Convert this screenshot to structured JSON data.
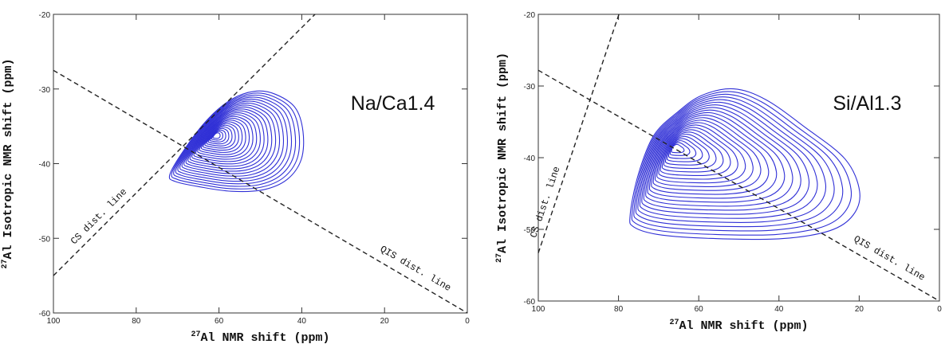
{
  "chart_data": [
    {
      "type": "contour",
      "annotation": "Na/Ca1.4",
      "color": "#2f2fd6",
      "xlim": [
        100,
        0
      ],
      "ylim": [
        -60,
        -20
      ],
      "xticks": [
        100,
        80,
        60,
        40,
        20,
        0
      ],
      "yticks": [
        -20,
        -30,
        -40,
        -50,
        -60
      ],
      "xlabel": {
        "sup": "27",
        "text": "Al NMR shift (ppm)"
      },
      "ylabel": {
        "sup": "27",
        "text": "Al Isotropic NMR shift (ppm)"
      },
      "lines": [
        {
          "name": "CS dist. line",
          "x": [
            100,
            36.8
          ],
          "y": [
            -55,
            -20
          ]
        },
        {
          "name": "QIS dist. line",
          "x": [
            100,
            0
          ],
          "y": [
            -27.5,
            -60
          ]
        }
      ],
      "contour": {
        "x": [
          71.9,
          68.6,
          62.8,
          57.0,
          51.3,
          46.4,
          41.6,
          39.7,
          40.1,
          43.5,
          49.3,
          57.0,
          64.7,
          70.5
        ],
        "y": [
          -41.5,
          -38.3,
          -34.1,
          -31.4,
          -30.3,
          -30.7,
          -32.5,
          -35.7,
          -39.4,
          -42.1,
          -43.5,
          -43.7,
          -43.1,
          -42.4
        ]
      },
      "peak": {
        "x": 60.9,
        "y": -36.2
      }
    },
    {
      "type": "contour",
      "annotation": "Si/Al1.3",
      "color": "#2f2fd6",
      "xlim": [
        100,
        0
      ],
      "ylim": [
        -60,
        -20
      ],
      "xticks": [
        100,
        80,
        60,
        40,
        20,
        0
      ],
      "yticks": [
        -20,
        -30,
        -40,
        -50,
        -60
      ],
      "xlabel": {
        "sup": "27",
        "text": "Al NMR shift (ppm)"
      },
      "ylabel": {
        "sup": "27",
        "text": "Al Isotropic NMR shift (ppm)"
      },
      "lines": [
        {
          "name": "CS dist. line",
          "x": [
            100,
            79.9
          ],
          "y": [
            -53.3,
            -20
          ]
        },
        {
          "name": "QIS dist. line",
          "x": [
            100,
            0
          ],
          "y": [
            -27.8,
            -60
          ]
        }
      ],
      "contour": {
        "x": [
          77.1,
          75.1,
          71.2,
          65.2,
          59.2,
          51.3,
          43.3,
          33.4,
          23.5,
          19.9,
          21.5,
          27.4,
          39.4,
          55.3,
          69.2,
          76.1
        ],
        "y": [
          -48,
          -42.4,
          -36.9,
          -33.6,
          -31.3,
          -30.4,
          -31.9,
          -35.8,
          -40.2,
          -44.7,
          -48,
          -50.2,
          -51.3,
          -51.3,
          -50.8,
          -49.7
        ]
      },
      "peak": {
        "x": 66.2,
        "y": -38.6
      }
    }
  ]
}
